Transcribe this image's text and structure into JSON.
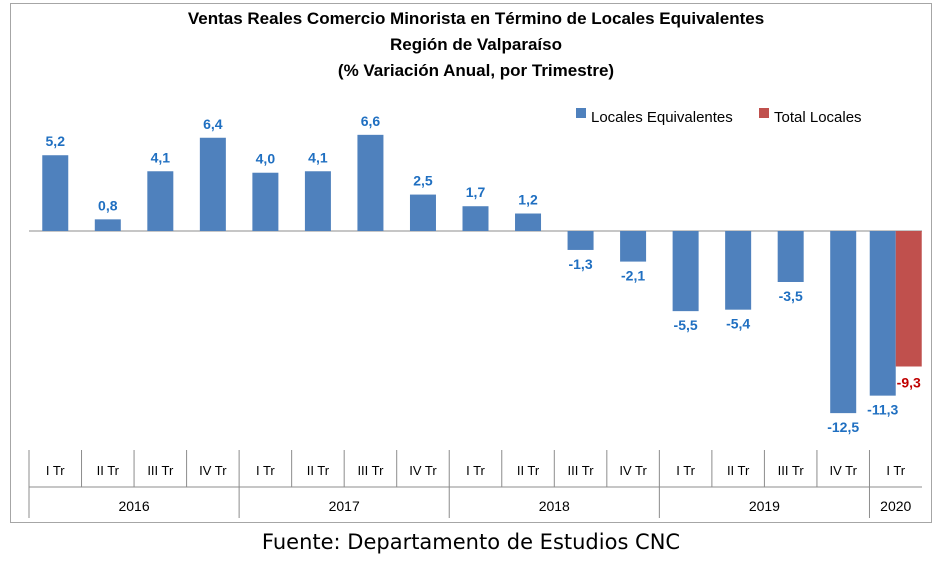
{
  "chart_data": {
    "type": "bar",
    "title": [
      "Ventas Reales Comercio Minorista  en Término de Locales Equivalentes",
      "Región de Valparaíso",
      "(% Variación Anual, por Trimestre)"
    ],
    "categories": [
      "I Tr",
      "II Tr",
      "III Tr",
      "IV Tr",
      "I Tr",
      "II Tr",
      "III Tr",
      "IV Tr",
      "I Tr",
      "II Tr",
      "III Tr",
      "IV Tr",
      "I Tr",
      "II Tr",
      "III Tr",
      "IV Tr",
      "I Tr"
    ],
    "years": [
      {
        "label": "2016",
        "count": 4
      },
      {
        "label": "2017",
        "count": 4
      },
      {
        "label": "2018",
        "count": 4
      },
      {
        "label": "2019",
        "count": 4
      },
      {
        "label": "2020",
        "count": 1
      }
    ],
    "series": [
      {
        "name": "Locales Equivalentes",
        "color": "#4f81bd",
        "label_color": "#1f6fc1",
        "values": [
          5.2,
          0.8,
          4.1,
          6.4,
          4.0,
          4.1,
          6.6,
          2.5,
          1.7,
          1.2,
          -1.3,
          -2.1,
          -5.5,
          -5.4,
          -3.5,
          -12.5,
          -11.3
        ],
        "labels": [
          "5,2",
          "0,8",
          "4,1",
          "6,4",
          "4,0",
          "4,1",
          "6,6",
          "2,5",
          "1,7",
          "1,2",
          "-1,3",
          "-2,1",
          "-5,5",
          "-5,4",
          "-3,5",
          "-12,5",
          "-11,3"
        ]
      },
      {
        "name": "Total Locales",
        "color": "#c0504d",
        "label_color": "#c00000",
        "values": [
          null,
          null,
          null,
          null,
          null,
          null,
          null,
          null,
          null,
          null,
          null,
          null,
          null,
          null,
          null,
          null,
          -9.3
        ],
        "labels": [
          "",
          "",
          "",
          "",
          "",
          "",
          "",
          "",
          "",
          "",
          "",
          "",
          "",
          "",
          "",
          "",
          "-9,3"
        ]
      }
    ],
    "legend_position": "top-right",
    "grid": false
  },
  "source": "Fuente: Departamento de Estudios CNC"
}
